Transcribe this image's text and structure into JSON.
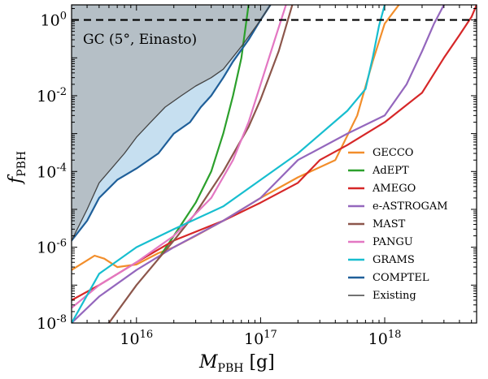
{
  "chart_data": {
    "type": "line",
    "xlabel_main": "M",
    "xlabel_sub": "PBH",
    "xlabel_unit": " [g]",
    "ylabel_main": "f",
    "ylabel_sub": "PBH",
    "xscale": "log",
    "yscale": "log",
    "xlim": [
      3000000000000000.0,
      5.5e+18
    ],
    "ylim": [
      1e-08,
      2.5
    ],
    "x_ticks": [
      {
        "value": 1e+16,
        "base": "10",
        "exp": "16"
      },
      {
        "value": 1e+17,
        "base": "10",
        "exp": "17"
      },
      {
        "value": 1e+18,
        "base": "10",
        "exp": "18"
      }
    ],
    "y_ticks": [
      {
        "value": 1,
        "base": "10",
        "exp": "0"
      },
      {
        "value": 0.01,
        "base": "10",
        "exp": "-2"
      },
      {
        "value": 0.0001,
        "base": "10",
        "exp": "-4"
      },
      {
        "value": 1e-06,
        "base": "10",
        "exp": "-6"
      },
      {
        "value": 1e-08,
        "base": "10",
        "exp": "-8"
      }
    ],
    "reference_line": {
      "y": 1,
      "style": "dashed",
      "color": "#000000"
    },
    "annotation": "GC (5°, Einasto)",
    "legend_position": "lower-right",
    "excluded_region": {
      "color": "#b5bfc6",
      "fill_to": "top"
    },
    "series": [
      {
        "name": "GECCO",
        "color": "#f28e2b",
        "x": [
          3000000000000000.0,
          4000000000000000.0,
          4600000000000000.0,
          5500000000000000.0,
          7000000000000000.0,
          1e+16,
          1.5e+16,
          2e+16,
          3e+16,
          5e+16,
          1e+17,
          2e+17,
          4e+17,
          6e+17,
          8e+17,
          1e+18,
          1.3e+18
        ],
        "y": [
          2.5e-07,
          4.5e-07,
          6e-07,
          5e-07,
          3e-07,
          3.5e-07,
          7e-07,
          1e-06,
          2e-06,
          5e-06,
          2e-05,
          7e-05,
          0.0002,
          0.003,
          0.08,
          0.8,
          2.5
        ]
      },
      {
        "name": "AdEPT",
        "color": "#2ca02c",
        "x": [
          1.5e+16,
          2e+16,
          3e+16,
          4e+16,
          5e+16,
          6e+16,
          7e+16,
          8e+16
        ],
        "y": [
          5e-07,
          2e-06,
          1.5e-05,
          0.0001,
          0.001,
          0.01,
          0.1,
          2.5
        ]
      },
      {
        "name": "AMEGO",
        "color": "#d62728",
        "x": [
          3000000000000000.0,
          5000000000000000.0,
          1e+16,
          2e+16,
          5e+16,
          1e+17,
          2e+17,
          3e+17,
          5e+17,
          1e+18,
          2e+18,
          3e+18,
          4e+18,
          5e+18,
          5.5e+18
        ],
        "y": [
          4e-08,
          1e-07,
          4e-07,
          1.5e-06,
          5e-06,
          1.5e-05,
          5e-05,
          0.0002,
          0.0005,
          0.002,
          0.012,
          0.1,
          0.4,
          1.2,
          2.5
        ]
      },
      {
        "name": "e-ASTROGAM",
        "color": "#9467bd",
        "x": [
          3000000000000000.0,
          5000000000000000.0,
          1e+16,
          2e+16,
          5e+16,
          1e+17,
          2e+17,
          5e+17,
          1e+18,
          1.5e+18,
          2e+18,
          2.5e+18,
          3e+18
        ],
        "y": [
          1e-08,
          5e-08,
          2.5e-07,
          1e-06,
          5e-06,
          2e-05,
          0.0002,
          0.001,
          0.003,
          0.02,
          0.15,
          0.8,
          2.5
        ]
      },
      {
        "name": "MAST",
        "color": "#8c564b",
        "x": [
          6000000000000000.0,
          1e+16,
          2e+16,
          3e+16,
          5e+16,
          8e+16,
          1e+17,
          1.4e+17,
          1.8e+17
        ],
        "y": [
          1e-08,
          1e-07,
          1.5e-06,
          8e-06,
          0.0001,
          0.0015,
          0.008,
          0.15,
          2.5
        ]
      },
      {
        "name": "PANGU",
        "color": "#e377c2",
        "x": [
          3000000000000000.0,
          5000000000000000.0,
          1e+16,
          2e+16,
          4e+16,
          6e+16,
          8e+16,
          1e+17,
          1.3e+17,
          1.6e+17
        ],
        "y": [
          2.5e-08,
          1e-07,
          4e-07,
          2e-06,
          2e-05,
          0.0002,
          0.002,
          0.02,
          0.3,
          2.5
        ]
      },
      {
        "name": "GRAMS",
        "color": "#17becf",
        "x": [
          3000000000000000.0,
          5000000000000000.0,
          1e+16,
          2e+16,
          5e+16,
          1e+17,
          2e+17,
          5e+17,
          7e+17,
          8e+17,
          9e+17,
          1e+18
        ],
        "y": [
          1e-08,
          2e-07,
          1e-06,
          3e-06,
          1.2e-05,
          6e-05,
          0.0003,
          0.004,
          0.015,
          0.1,
          0.7,
          2.5
        ]
      },
      {
        "name": "COMPTEL",
        "color": "#1f5f99",
        "x": [
          3000000000000000.0,
          4000000000000000.0,
          5000000000000000.0,
          7000000000000000.0,
          1e+16,
          1.5e+16,
          2e+16,
          2.7e+16,
          3.3e+16,
          4e+16,
          5e+16,
          6e+16,
          8e+16,
          1e+17,
          1.2e+17
        ],
        "y": [
          1.5e-06,
          5e-06,
          2e-05,
          6e-05,
          0.00012,
          0.0003,
          0.001,
          0.002,
          0.005,
          0.01,
          0.03,
          0.08,
          0.3,
          1,
          2.5
        ]
      },
      {
        "name": "Existing",
        "color": "#444444",
        "x": [
          3000000000000000.0,
          4000000000000000.0,
          5000000000000000.0,
          6000000000000000.0,
          8000000000000000.0,
          1e+16,
          1.3e+16,
          1.7e+16,
          2.3e+16,
          3e+16,
          4e+16,
          5e+16,
          7e+16,
          1e+17,
          1.2e+17
        ],
        "y": [
          1.5e-06,
          1e-05,
          5e-05,
          0.0001,
          0.0003,
          0.0008,
          0.002,
          0.005,
          0.01,
          0.018,
          0.03,
          0.05,
          0.2,
          1,
          2.5
        ]
      }
    ]
  }
}
